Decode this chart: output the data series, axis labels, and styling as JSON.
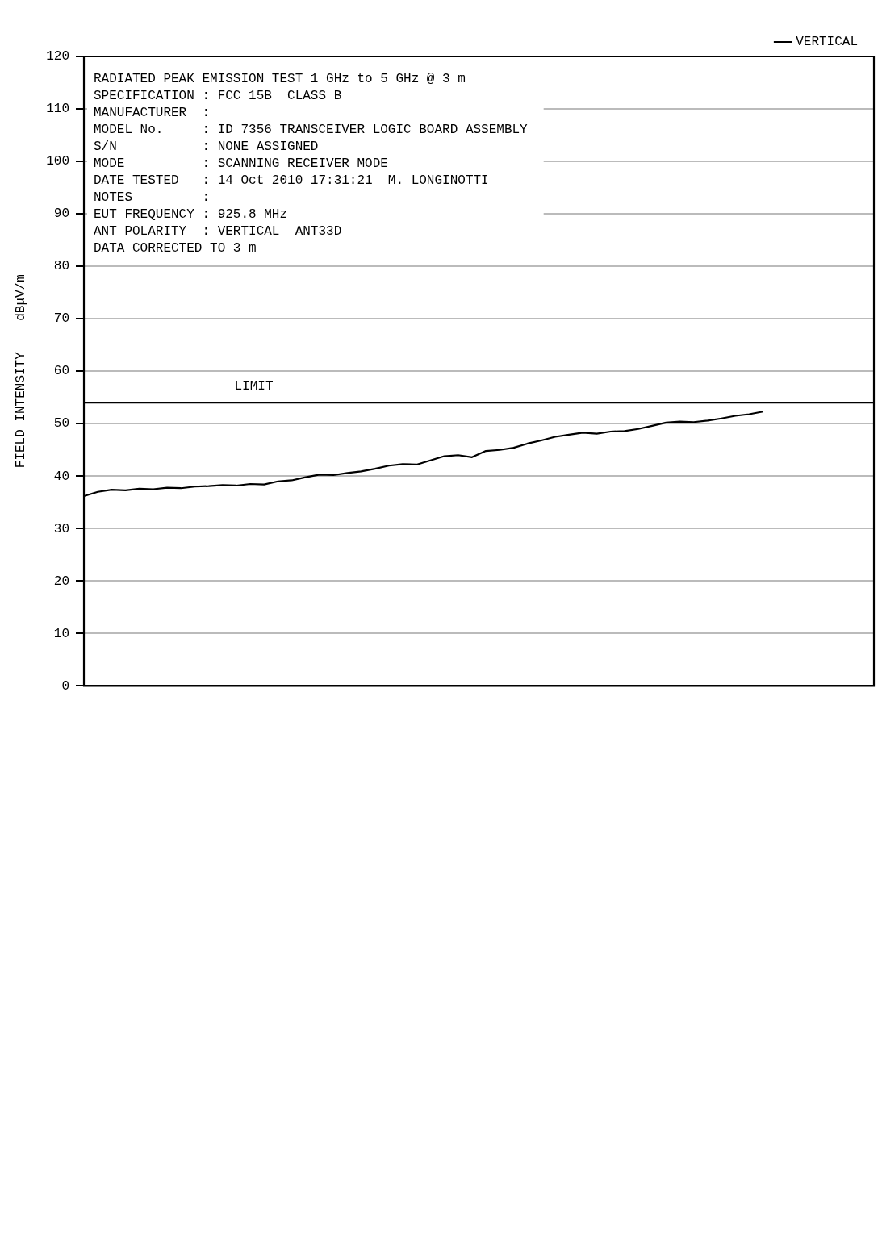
{
  "chart_data": {
    "type": "line",
    "title": "RADIATED PEAK EMISSION TEST 1 GHz to 5 GHz @ 3 m",
    "annotations": [
      "SPECIFICATION : FCC 15B  CLASS B",
      "MANUFACTURER  :",
      "MODEL No.     : ID 7356 TRANSCEIVER LOGIC BOARD ASSEMBLY",
      "S/N           : NONE ASSIGNED",
      "MODE          : SCANNING RECEIVER MODE",
      "DATE TESTED   : 14 Oct 2010 17:31:21  M. LONGINOTTI",
      "NOTES         :",
      "EUT FREQUENCY : 925.8 MHz",
      "ANT POLARITY  : VERTICAL  ANT33D",
      "DATA CORRECTED TO 3 m"
    ],
    "ylabel": "FIELD INTENSITY    dBμV/m",
    "categories": [
      null,
      null,
      null,
      null,
      null,
      null,
      null,
      null,
      null,
      null,
      null,
      null,
      null,
      null,
      null,
      null,
      null,
      null,
      null,
      null,
      null,
      null,
      null,
      null,
      null,
      null,
      null,
      null,
      null,
      null,
      null,
      null,
      null,
      null,
      null,
      null,
      null,
      null,
      null,
      null,
      null,
      null,
      null,
      null,
      null,
      null,
      null,
      null,
      null,
      null,
      null,
      null,
      null,
      null,
      null,
      null,
      null,
      null
    ],
    "series": [
      {
        "name": "VERTICAL",
        "color": "#000000",
        "values": [
          36.2,
          37.0,
          37.4,
          37.3,
          37.6,
          37.5,
          37.8,
          37.7,
          38.0,
          38.1,
          38.3,
          38.2,
          38.5,
          38.4,
          39.0,
          39.2,
          39.8,
          40.3,
          40.2,
          40.6,
          40.9,
          41.4,
          42.0,
          42.3,
          42.2,
          43.0,
          43.8,
          44.0,
          43.6,
          44.8,
          45.0,
          45.4,
          46.2,
          46.8,
          47.5,
          47.9,
          48.3,
          48.1,
          48.5,
          48.6,
          49.0,
          49.6,
          50.2,
          50.4,
          50.3,
          50.6,
          51.0,
          51.5,
          51.8,
          52.3,
          null,
          null,
          null,
          null,
          null,
          null,
          null,
          null
        ]
      }
    ],
    "ylim": [
      0,
      120
    ],
    "yticks": [
      0,
      10,
      20,
      30,
      40,
      50,
      60,
      70,
      80,
      90,
      100,
      110,
      120
    ],
    "ref_lines": [
      {
        "axis": "y",
        "value": 54,
        "label": "LIMIT",
        "color": "#000000"
      }
    ],
    "grid": "y",
    "legend": "top right",
    "tick_labels": "y",
    "marker": "none",
    "line_style": "solid"
  }
}
